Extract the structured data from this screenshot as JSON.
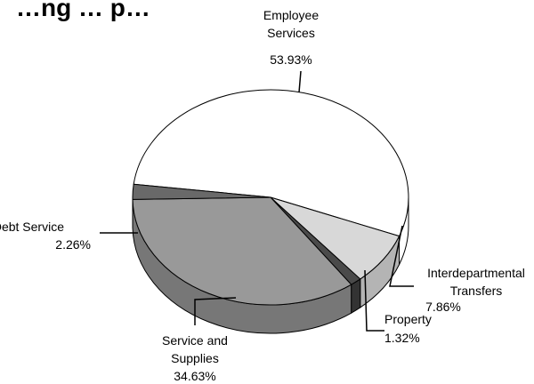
{
  "chart_data": {
    "type": "pie",
    "title": "…ng … p…",
    "slices": [
      {
        "label": [
          "Employee",
          "Services"
        ],
        "value": 53.93,
        "value_label": "53.93%",
        "color": "#ffffff",
        "side_color": "#ffffff"
      },
      {
        "label": [
          "Interdepartmental",
          "Transfers"
        ],
        "value": 7.86,
        "value_label": "7.86%",
        "color": "#d8d8d8",
        "side_color": "#b4b4b4"
      },
      {
        "label": [
          "Property"
        ],
        "value": 1.32,
        "value_label": "1.32%",
        "color": "#4a4a4a",
        "side_color": "#333333"
      },
      {
        "label": [
          "Service and",
          "Supplies"
        ],
        "value": 34.63,
        "value_label": "34.63%",
        "color": "#999999",
        "side_color": "#777777"
      },
      {
        "label": [
          "Debt Service"
        ],
        "value": 2.26,
        "value_label": "2.26%",
        "color": "#696969",
        "side_color": "#4f4f4f"
      }
    ],
    "start_angle_deg": 187,
    "direction": "clockwise",
    "style": "3d-tilted"
  }
}
